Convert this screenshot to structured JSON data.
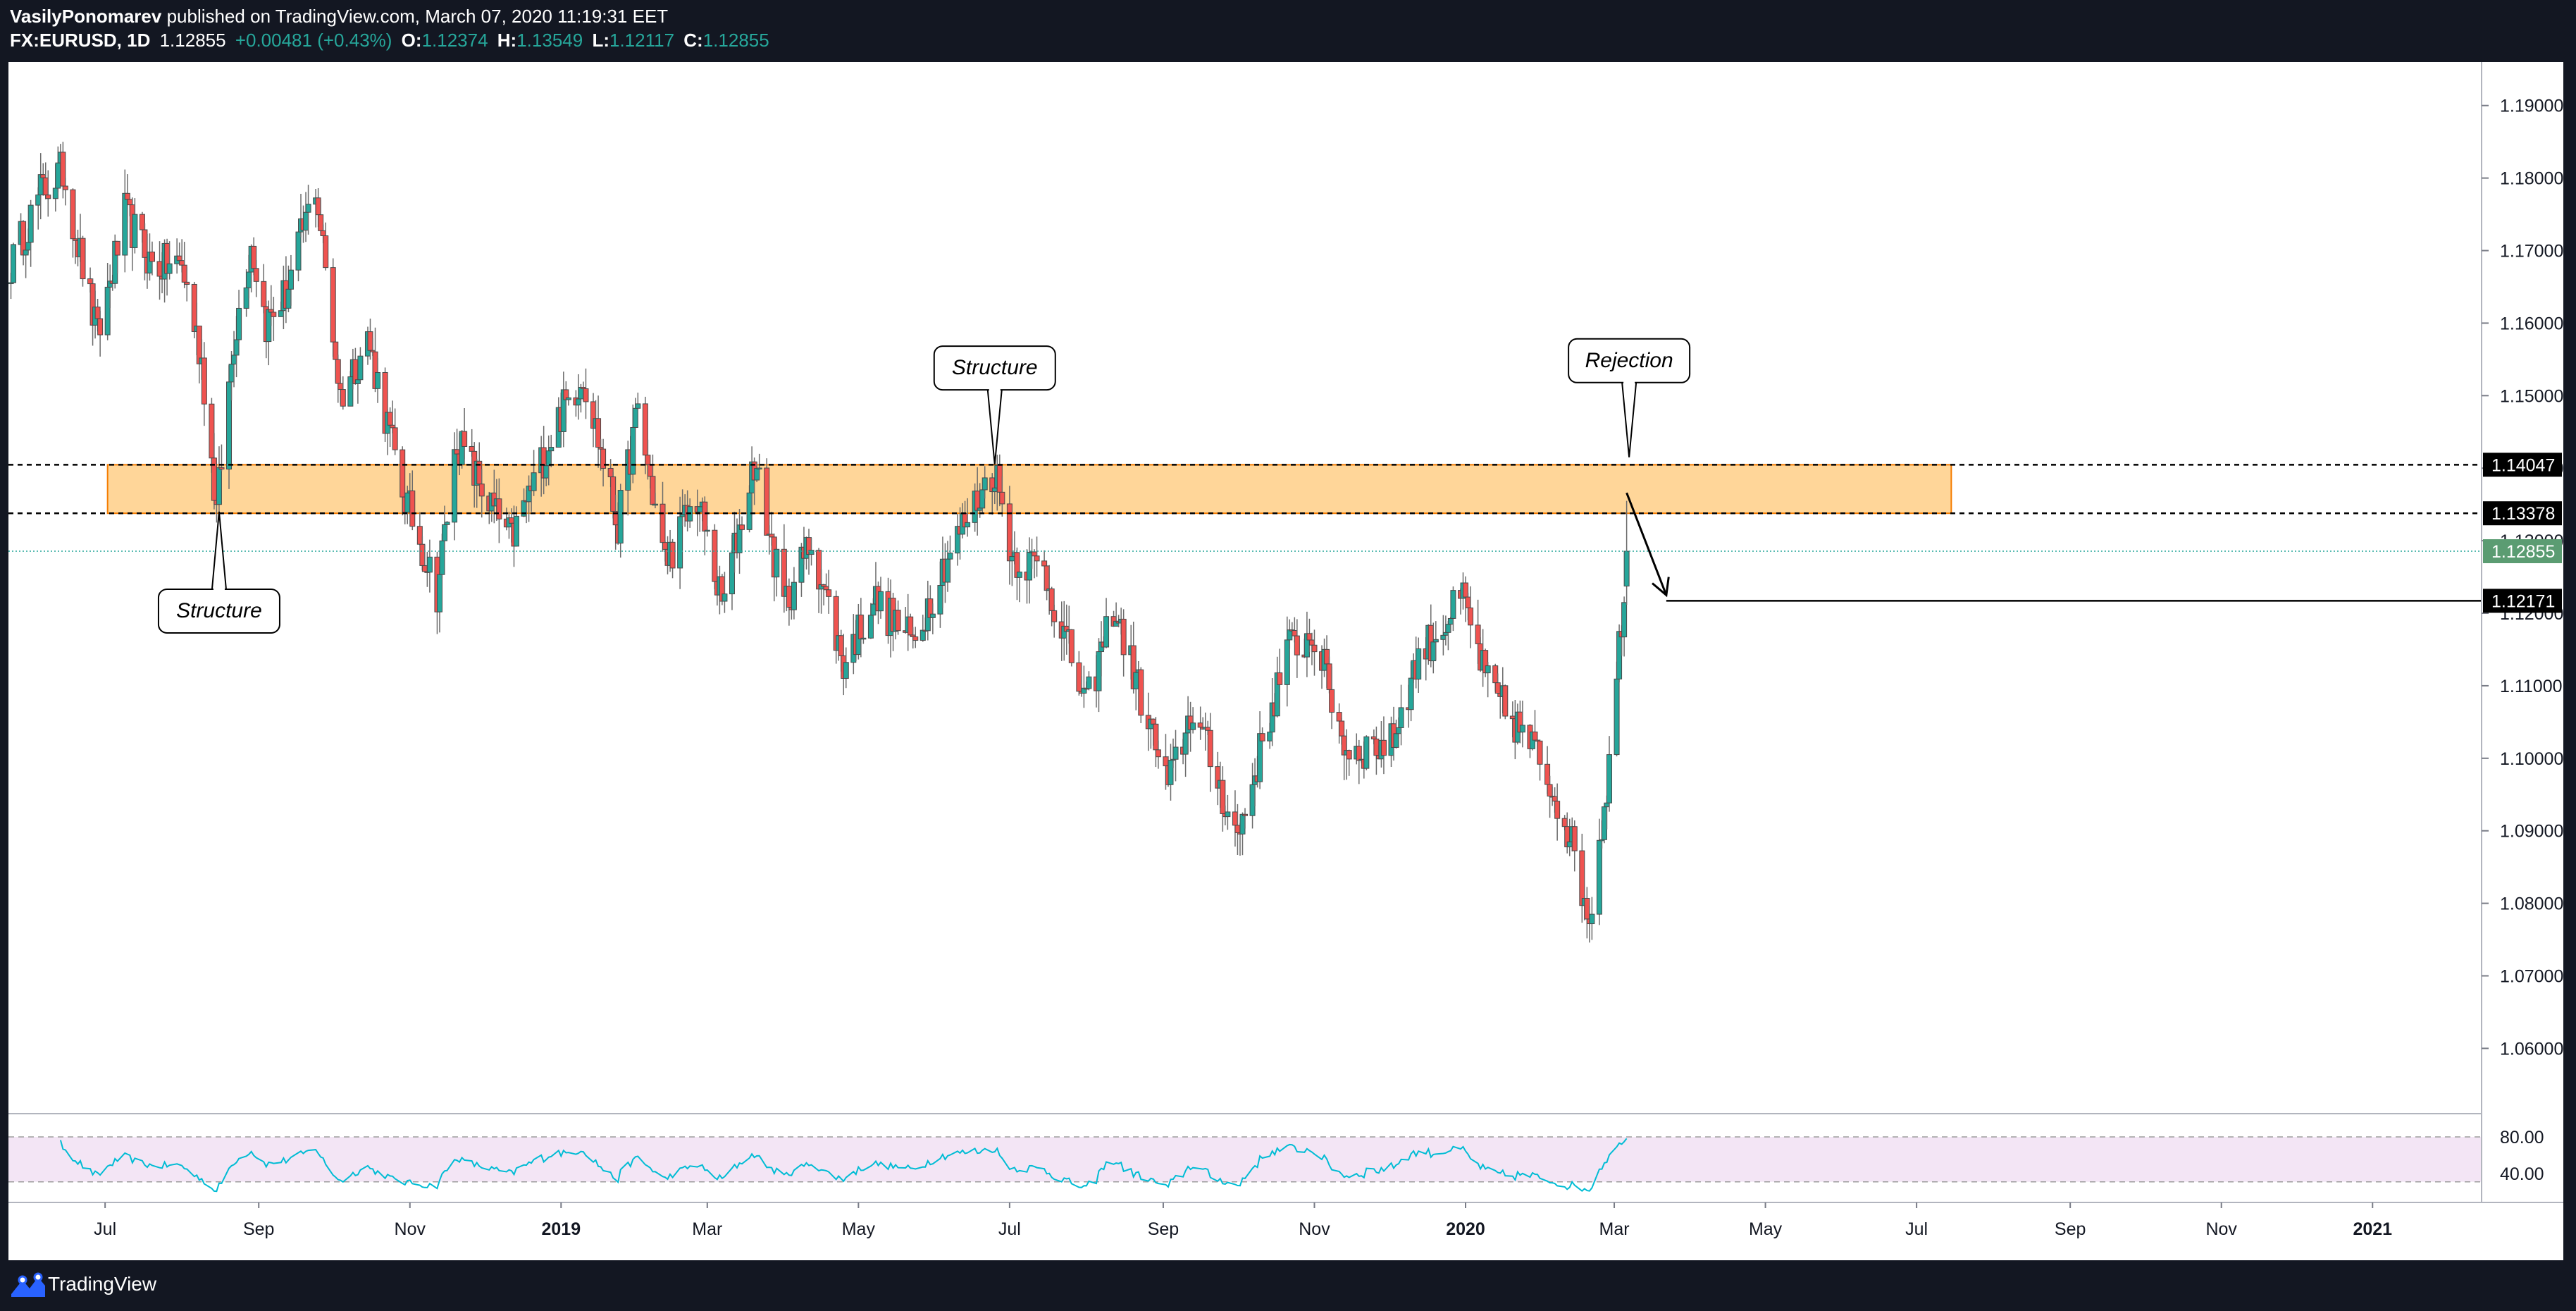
{
  "header": {
    "author": "VasilyPonomarev",
    "published_text": "published on TradingView.com, March 07, 2020 11:19:31 EET",
    "symbol": "FX:EURUSD, 1D",
    "last_price": "1.12855",
    "change": "+0.00481 (+0.43%)",
    "o_label": "O:",
    "o_value": "1.12374",
    "h_label": "H:",
    "h_value": "1.13549",
    "l_label": "L:",
    "l_value": "1.12117",
    "c_label": "C:",
    "c_value": "1.12855"
  },
  "footer": {
    "brand": "TradingView"
  },
  "chart_data": {
    "type": "candlestick",
    "symbol": "FX:EURUSD",
    "interval": "1D",
    "ylim": [
      1.051,
      1.196
    ],
    "yticks": [
      "1.19000",
      "1.18000",
      "1.17000",
      "1.16000",
      "1.15000",
      "1.14000",
      "1.13000",
      "1.12000",
      "1.11000",
      "1.10000",
      "1.09000",
      "1.08000",
      "1.07000",
      "1.06000"
    ],
    "xticks": [
      "Jul",
      "Sep",
      "Nov",
      "2019",
      "Mar",
      "May",
      "Jul",
      "Sep",
      "Nov",
      "2020",
      "Mar",
      "May",
      "Jul",
      "Sep",
      "Nov",
      "2021"
    ],
    "xtick_dates": [
      "2018-07-01",
      "2018-09-01",
      "2018-11-01",
      "2019-01-01",
      "2019-03-01",
      "2019-05-01",
      "2019-07-01",
      "2019-09-01",
      "2019-11-01",
      "2020-01-01",
      "2020-03-01",
      "2020-05-01",
      "2020-07-01",
      "2020-09-01",
      "2020-11-01",
      "2021-01-01"
    ],
    "xlim": [
      "2018-05-23",
      "2021-02-14"
    ],
    "price_path": [
      [
        "2018-05-24",
        1.168
      ],
      [
        "2018-06-05",
        1.178
      ],
      [
        "2018-06-14",
        1.181
      ],
      [
        "2018-06-28",
        1.158
      ],
      [
        "2018-07-09",
        1.175
      ],
      [
        "2018-07-20",
        1.168
      ],
      [
        "2018-08-01",
        1.168
      ],
      [
        "2018-08-09",
        1.155
      ],
      [
        "2018-08-15",
        1.134
      ],
      [
        "2018-08-22",
        1.158
      ],
      [
        "2018-08-29",
        1.171
      ],
      [
        "2018-09-04",
        1.16
      ],
      [
        "2018-09-12",
        1.164
      ],
      [
        "2018-09-24",
        1.179
      ],
      [
        "2018-10-04",
        1.15
      ],
      [
        "2018-10-15",
        1.158
      ],
      [
        "2018-10-29",
        1.137
      ],
      [
        "2018-11-12",
        1.123
      ],
      [
        "2018-11-20",
        1.144
      ],
      [
        "2018-12-05",
        1.134
      ],
      [
        "2018-12-12",
        1.13
      ],
      [
        "2018-12-31",
        1.147
      ],
      [
        "2019-01-10",
        1.153
      ],
      [
        "2019-01-24",
        1.132
      ],
      [
        "2019-02-01",
        1.148
      ],
      [
        "2019-02-12",
        1.127
      ],
      [
        "2019-02-25",
        1.136
      ],
      [
        "2019-03-07",
        1.121
      ],
      [
        "2019-03-20",
        1.141
      ],
      [
        "2019-04-01",
        1.121
      ],
      [
        "2019-04-12",
        1.13
      ],
      [
        "2019-04-25",
        1.113
      ],
      [
        "2019-05-07",
        1.122
      ],
      [
        "2019-05-23",
        1.116
      ],
      [
        "2019-06-06",
        1.128
      ],
      [
        "2019-06-25",
        1.14
      ],
      [
        "2019-07-02",
        1.128
      ],
      [
        "2019-07-15",
        1.126
      ],
      [
        "2019-08-01",
        1.107
      ],
      [
        "2019-08-12",
        1.121
      ],
      [
        "2019-09-03",
        1.096
      ],
      [
        "2019-09-13",
        1.107
      ],
      [
        "2019-10-01",
        1.089
      ],
      [
        "2019-10-21",
        1.115
      ],
      [
        "2019-11-01",
        1.117
      ],
      [
        "2019-11-14",
        1.101
      ],
      [
        "2019-12-02",
        1.102
      ],
      [
        "2019-12-13",
        1.114
      ],
      [
        "2019-12-31",
        1.122
      ],
      [
        "2020-01-10",
        1.11
      ],
      [
        "2020-01-29",
        1.101
      ],
      [
        "2020-02-10",
        1.092
      ],
      [
        "2020-02-20",
        1.078
      ],
      [
        "2020-02-28",
        1.099
      ],
      [
        "2020-03-06",
        1.128
      ]
    ],
    "ohlc_last": {
      "o": 1.12374,
      "h": 1.13549,
      "l": 1.12117,
      "c": 1.12855
    },
    "zone": {
      "top": 1.14047,
      "bottom": 1.13378,
      "from": "2018-07-02",
      "to": "2020-07-15",
      "color": "#ffcc80",
      "border": "#f57c00"
    },
    "levels": [
      {
        "value": 1.14047,
        "label": "1.14047",
        "style": "dashed",
        "color": "#000000"
      },
      {
        "value": 1.13378,
        "label": "1.13378",
        "style": "dashed",
        "color": "#000000"
      },
      {
        "value": 1.12855,
        "label": "1.12855",
        "style": "dotted",
        "color": "#26a69a"
      },
      {
        "value": 1.12171,
        "label": "1.12171",
        "style": "solid",
        "color": "#000000",
        "from": "2020-03-22"
      }
    ],
    "arrow": {
      "from": [
        "2020-03-06",
        1.1366
      ],
      "to": [
        "2020-03-22",
        1.1225
      ]
    },
    "callouts": [
      {
        "text": "Structure",
        "date": "2018-08-16",
        "anchor": 1.134,
        "position": "below"
      },
      {
        "text": "Structure",
        "date": "2019-06-25",
        "anchor": 1.1405,
        "position": "above"
      },
      {
        "text": "Rejection",
        "date": "2020-03-07",
        "anchor": 1.1415,
        "position": "above"
      }
    ],
    "rsi": {
      "upper": 80.0,
      "lower": 40.0,
      "upper_label": "80.00",
      "lower_label": "40.00",
      "band_color": "#f3e5f5",
      "line_color": "#00bcd4"
    },
    "colors": {
      "up": "#26a69a",
      "down": "#ef5350",
      "bg": "#ffffff",
      "header_bg": "#131722"
    }
  }
}
